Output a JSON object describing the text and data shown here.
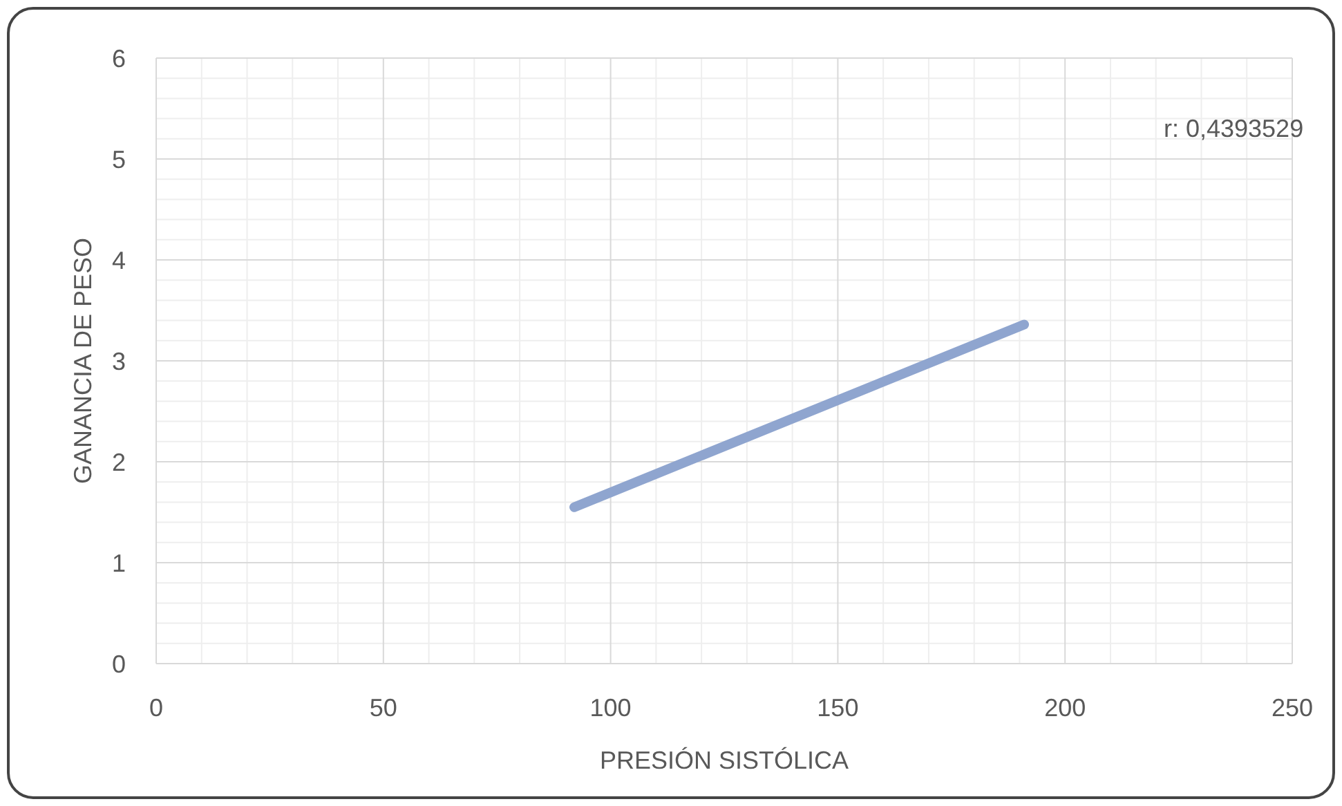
{
  "chart_data": {
    "type": "line",
    "xlabel": "PRESIÓN SISTÓLICA",
    "ylabel": "GANANCIA DE PESO",
    "series": [
      {
        "color": "#8fa5cf",
        "x": [
          92,
          191
        ],
        "values": [
          1.55,
          3.36
        ]
      }
    ],
    "xlim": [
      0,
      250
    ],
    "xticks": [
      0,
      50,
      100,
      150,
      200,
      250
    ],
    "ylim": [
      0,
      6
    ],
    "yticks": [
      0,
      1,
      2,
      3,
      4,
      5,
      6
    ],
    "grid": true,
    "marker": "none",
    "line_style": "solid",
    "annotations": [
      "r: 0,4393529"
    ]
  }
}
